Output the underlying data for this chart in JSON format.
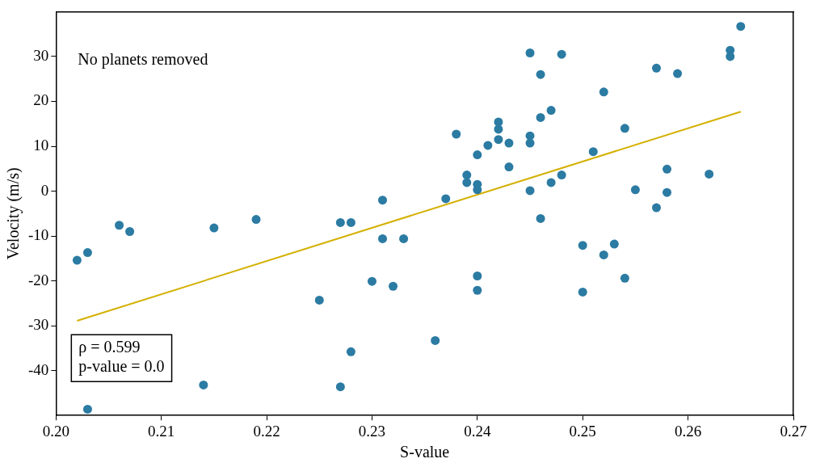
{
  "chart_data": {
    "type": "scatter",
    "xlabel": "S-value",
    "ylabel": "Velocity (m/s)",
    "xlim": [
      0.2,
      0.27
    ],
    "xticks": [
      {
        "value": 0.2,
        "label": "0.20"
      },
      {
        "value": 0.21,
        "label": "0.21"
      },
      {
        "value": 0.22,
        "label": "0.22"
      },
      {
        "value": 0.23,
        "label": "0.23"
      },
      {
        "value": 0.24,
        "label": "0.24"
      },
      {
        "value": 0.25,
        "label": "0.25"
      },
      {
        "value": 0.26,
        "label": "0.26"
      },
      {
        "value": 0.27,
        "label": "0.27"
      }
    ],
    "ylim": [
      -50,
      40
    ],
    "yticks": [
      -40,
      -30,
      -20,
      -10,
      0,
      10,
      20,
      30
    ],
    "grid": false,
    "legend": false,
    "marker": "circle",
    "annotations": [
      "No planets removed",
      "ρ = 0.599",
      "p-value = 0.0"
    ],
    "series": [
      {
        "color": "#2b7ba3",
        "x": [
          0.202,
          0.203,
          0.203,
          0.206,
          0.207,
          0.214,
          0.215,
          0.219,
          0.225,
          0.227,
          0.227,
          0.228,
          0.228,
          0.23,
          0.231,
          0.231,
          0.232,
          0.233,
          0.236,
          0.237,
          0.238,
          0.239,
          0.239,
          0.24,
          0.24,
          0.24,
          0.24,
          0.24,
          0.241,
          0.242,
          0.242,
          0.242,
          0.243,
          0.243,
          0.245,
          0.245,
          0.245,
          0.245,
          0.246,
          0.246,
          0.246,
          0.247,
          0.247,
          0.248,
          0.248,
          0.25,
          0.25,
          0.251,
          0.252,
          0.252,
          0.253,
          0.254,
          0.254,
          0.255,
          0.257,
          0.257,
          0.258,
          0.258,
          0.259,
          0.262,
          0.264,
          0.264,
          0.265
        ],
        "values": [
          -15.4,
          -13.7,
          -48.6,
          -7.6,
          -9.0,
          -43.2,
          -8.2,
          -6.3,
          -24.3,
          -43.6,
          -7.0,
          -7.0,
          -35.8,
          -20.1,
          -2.0,
          -10.6,
          -21.2,
          -10.6,
          -33.3,
          -1.7,
          12.7,
          3.6,
          1.9,
          8.1,
          1.5,
          0.3,
          -18.9,
          -22.1,
          10.2,
          15.4,
          13.8,
          11.5,
          10.7,
          5.4,
          30.8,
          12.3,
          10.7,
          0.1,
          26.0,
          16.4,
          -6.1,
          18.0,
          1.9,
          30.5,
          3.6,
          -12.1,
          -22.5,
          8.8,
          22.1,
          -14.2,
          -11.8,
          14.0,
          -19.4,
          0.3,
          27.4,
          -3.7,
          4.9,
          -0.3,
          26.2,
          3.8,
          31.4,
          30.0,
          36.7
        ]
      },
      {
        "type": "line",
        "color": "#d4b000",
        "marker": "none",
        "line_style": "solid",
        "x": [
          0.202,
          0.265
        ],
        "values": [
          -28.9,
          17.7
        ]
      }
    ]
  }
}
